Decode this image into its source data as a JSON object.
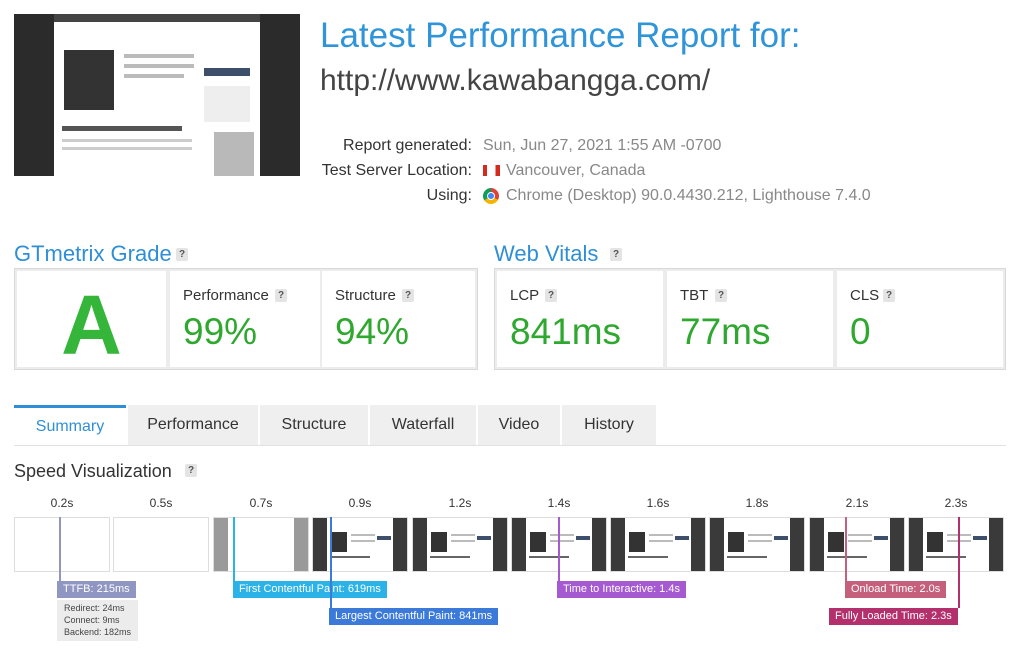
{
  "header": {
    "title": "Latest Performance Report for:",
    "url": "http://www.kawabangga.com/"
  },
  "report": [
    {
      "label": "Report generated:",
      "value": "Sun, Jun 27, 2021 1:55 AM -0700"
    },
    {
      "label": "Test Server Location:",
      "value": "Vancouver, Canada"
    },
    {
      "label": "Using:",
      "value": "Chrome (Desktop) 90.0.4430.212, Lighthouse 7.4.0"
    }
  ],
  "help": "?",
  "grade": {
    "title": "GTmetrix Grade",
    "letter": "A",
    "metrics": [
      {
        "label": "Performance",
        "value": "99%"
      },
      {
        "label": "Structure",
        "value": "94%"
      }
    ]
  },
  "vitals": {
    "title": "Web Vitals",
    "metrics": [
      {
        "label": "LCP",
        "value": "841ms"
      },
      {
        "label": "TBT",
        "value": "77ms"
      },
      {
        "label": "CLS",
        "value": "0"
      }
    ]
  },
  "tabs": [
    "Summary",
    "Performance",
    "Structure",
    "Waterfall",
    "Video",
    "History"
  ],
  "speed": {
    "title": "Speed Visualization",
    "frames": [
      "0.2s",
      "0.5s",
      "0.7s",
      "0.9s",
      "1.2s",
      "1.4s",
      "1.6s",
      "1.8s",
      "2.1s",
      "2.3s"
    ],
    "markers": [
      "TTFB: 215ms",
      "First Contentful Paint: 619ms",
      "Largest Contentful Paint: 841ms",
      "Time to Interactive: 1.4s",
      "Onload Time: 2.0s",
      "Fully Loaded Time: 2.3s"
    ],
    "ttfb_details": [
      "Redirect: 24ms",
      "Connect: 9ms",
      "Backend: 182ms"
    ]
  }
}
